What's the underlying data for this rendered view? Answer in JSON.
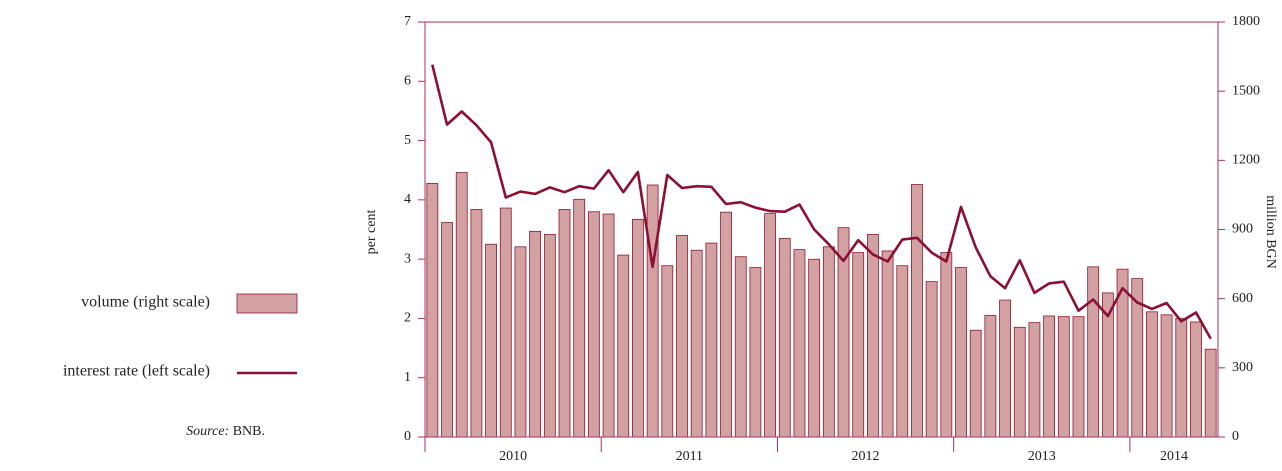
{
  "chart_data": {
    "type": "combo",
    "ylabel": "per cent",
    "y2label": "million BGN",
    "source_label": "Source:",
    "source": "BNB.",
    "x_groups": [
      "2010",
      "2011",
      "2012",
      "2013",
      "2014"
    ],
    "categories": [
      null,
      null,
      null,
      null,
      null,
      null,
      null,
      null,
      null,
      null,
      null,
      null,
      null,
      null,
      null,
      null,
      null,
      null,
      null,
      null,
      null,
      null,
      null,
      null,
      null,
      null,
      null,
      null,
      null,
      null,
      null,
      null,
      null,
      null,
      null,
      null,
      null,
      null,
      null,
      null,
      null,
      null,
      null,
      null,
      null,
      null,
      null,
      null,
      null,
      null,
      null,
      null,
      null,
      null
    ],
    "ylim": [
      0,
      7
    ],
    "yticks": [
      0,
      1,
      2,
      3,
      4,
      5,
      6,
      7
    ],
    "y2lim": [
      0,
      1800
    ],
    "y2ticks": [
      0,
      300,
      600,
      900,
      1200,
      1500,
      1800
    ],
    "series": [
      {
        "name": "volume (right scale)",
        "type": "bar",
        "axis": "y2",
        "color": "#d4a1a3",
        "edge": "#8b1a30",
        "values": [
          1100,
          930,
          1147,
          987,
          836,
          993,
          825,
          892,
          879,
          987,
          1031,
          977,
          967,
          789,
          944,
          1093,
          743,
          874,
          810,
          841,
          975,
          782,
          735,
          969,
          861,
          813,
          771,
          825,
          908,
          800,
          879,
          807,
          743,
          1095,
          674,
          800,
          735,
          463,
          527,
          594,
          476,
          496,
          525,
          522,
          522,
          738,
          625,
          728,
          687,
          543,
          530,
          514,
          499,
          381
        ]
      },
      {
        "name": "interest rate (left scale)",
        "type": "line",
        "axis": "y",
        "color": "#8b1033",
        "values": [
          6.28,
          5.27,
          5.49,
          5.26,
          4.97,
          4.04,
          4.14,
          4.1,
          4.21,
          4.13,
          4.23,
          4.19,
          4.5,
          4.13,
          4.47,
          2.87,
          4.42,
          4.2,
          4.23,
          4.22,
          3.93,
          3.96,
          3.87,
          3.81,
          3.8,
          3.92,
          3.5,
          3.25,
          2.97,
          3.32,
          3.08,
          2.96,
          3.33,
          3.36,
          3.11,
          2.96,
          3.88,
          3.2,
          2.71,
          2.51,
          2.98,
          2.43,
          2.59,
          2.62,
          2.13,
          2.32,
          2.04,
          2.51,
          2.27,
          2.16,
          2.26,
          1.95,
          2.1,
          1.66
        ]
      }
    ]
  }
}
